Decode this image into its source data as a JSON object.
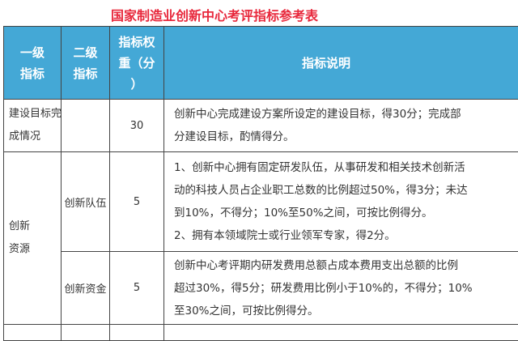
{
  "title": "国家制造业创新中心考评指标参考表",
  "colors": {
    "title": "#e8283c",
    "header_bg": "#44a8d6"
  },
  "headers": {
    "level1": [
      "一级",
      "指标"
    ],
    "level2": [
      "二级",
      "指标"
    ],
    "weight": [
      "指标权",
      "重（分",
      "）"
    ],
    "description": "指标说明"
  },
  "rows": [
    {
      "level1": [
        "建设目标完",
        "成情况"
      ],
      "level2": "",
      "weight": "30",
      "description": [
        "创新中心完成建设方案所设定的建设目标，得30分；完成部",
        "分建设目标，酌情得分。"
      ]
    },
    {
      "level1": [
        "创新",
        "资源"
      ],
      "level2": "创新队伍",
      "weight": "5",
      "description": [
        "1、创新中心拥有固定研发队伍，从事研发和相关技术创新活",
        "动的科技人员占企业职工总数的比例超过50%，得3分；未达",
        "到10%，不得分；10%至50%之间，可按比例得分。",
        "2、拥有本领域院士或行业领军专家，得2分。"
      ]
    },
    {
      "level2": "创新资金",
      "weight": "5",
      "description": [
        "创新中心考评期内研发费用总额占成本费用支出总额的比例",
        "超过30%，得5分；研发费用比例小于10%的，不得分；10%",
        "至30%之间，可按比例得分。"
      ]
    }
  ]
}
